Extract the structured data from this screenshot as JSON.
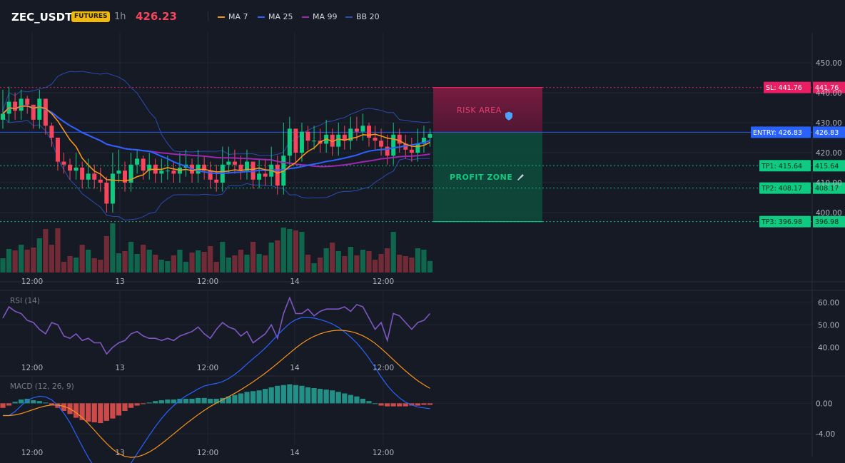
{
  "header": {
    "symbol": "ZEC_USDT",
    "badge": "FUTURES",
    "timeframe": "1h",
    "last_price": "426.23",
    "legend": [
      {
        "label": "MA 7",
        "color": "#f7931a"
      },
      {
        "label": "MA 25",
        "color": "#2962ff"
      },
      {
        "label": "MA 99",
        "color": "#9c27b0"
      },
      {
        "label": "BB 20",
        "color": "#2a4bb0"
      }
    ]
  },
  "colors": {
    "up": "#0ecb81",
    "down": "#f6465d",
    "grid": "#1f2533",
    "risk": "#e91e63",
    "profit": "#00c087",
    "entry": "#2962ff"
  },
  "chart_data": [
    {
      "type": "candlestick",
      "name": "price",
      "x_ticks": [
        "12:00",
        "13",
        "12:00",
        "14",
        "12:00"
      ],
      "y_ticks": [
        "450.00",
        "440.00",
        "430.00",
        "420.00",
        "410.00",
        "400.00"
      ],
      "ylim": [
        380,
        460
      ],
      "ohlc_approx": {
        "closes": [
          433,
          437,
          434,
          438,
          436,
          431,
          438,
          429,
          425,
          417,
          416,
          414,
          415,
          411,
          413,
          411,
          410,
          403,
          413,
          414,
          410,
          416,
          418,
          414,
          416,
          413,
          414,
          414,
          413,
          415,
          416,
          413,
          416,
          414,
          411,
          410,
          416,
          417,
          416,
          414,
          417,
          411,
          413,
          412,
          416,
          409,
          419,
          428,
          420,
          427,
          424,
          424,
          423,
          426,
          422,
          426,
          424,
          428,
          427,
          429,
          425,
          424,
          422,
          419,
          426,
          423,
          421,
          420,
          423,
          425,
          426.23
        ],
        "highs": [
          441,
          442,
          440,
          441,
          439,
          436,
          441,
          434,
          430,
          423,
          420,
          418,
          420,
          417,
          418,
          416,
          415,
          412,
          420,
          421,
          417,
          420,
          421,
          419,
          420,
          418,
          418,
          419,
          417,
          420,
          421,
          418,
          421,
          419,
          417,
          416,
          422,
          422,
          421,
          419,
          421,
          417,
          418,
          418,
          422,
          419,
          430,
          432,
          426,
          430,
          429,
          429,
          428,
          431,
          428,
          430,
          429,
          432,
          432,
          433,
          430,
          429,
          428,
          426,
          430,
          428,
          426,
          425,
          428,
          429,
          428
        ]
      },
      "levels": [
        {
          "label": "SL",
          "value": 441.76,
          "text": "SL: 441.76",
          "axis_text": "441.76"
        },
        {
          "label": "ENTRY",
          "value": 426.83,
          "text": "ENTRY: 426.83",
          "axis_text": "426.83"
        },
        {
          "label": "TP1",
          "value": 415.64,
          "text": "TP1: 415.64",
          "axis_text": "415.64"
        },
        {
          "label": "TP2",
          "value": 408.17,
          "text": "TP2: 408.17",
          "axis_text": "408.17"
        },
        {
          "label": "TP3",
          "value": 396.98,
          "text": "TP3: 396.98",
          "axis_text": "396.98"
        }
      ],
      "zones": [
        {
          "label": "RISK AREA",
          "icon": "shield-icon",
          "from": 426.83,
          "to": 441.76
        },
        {
          "label": "PROFIT ZONE",
          "icon": "rocket-icon",
          "from": 396.98,
          "to": 426.83
        }
      ]
    },
    {
      "type": "line",
      "name": "RSI (14)",
      "y_ticks": [
        "60.00",
        "50.00",
        "40.00"
      ],
      "ylim": [
        32,
        65
      ],
      "values": [
        53,
        58,
        56,
        55,
        52,
        51,
        48,
        46,
        51,
        50,
        45,
        44,
        46,
        43,
        44,
        42,
        42,
        37,
        40,
        42,
        43,
        46,
        47,
        45,
        44,
        44,
        43,
        44,
        43,
        45,
        46,
        47,
        49,
        46,
        44,
        48,
        51,
        49,
        48,
        45,
        47,
        42,
        44,
        46,
        50,
        44,
        55,
        62,
        55,
        55,
        57,
        54,
        56,
        57,
        57,
        57,
        58,
        56,
        59,
        58,
        53,
        48,
        51,
        43,
        55,
        54,
        51,
        48,
        51,
        52,
        55
      ]
    },
    {
      "type": "bar",
      "name": "MACD (12, 26, 9)",
      "y_ticks": [
        "0.00",
        "-4.00"
      ],
      "ylim": [
        -5.5,
        3.5
      ],
      "histogram": [
        -0.6,
        -0.3,
        0.2,
        0.5,
        0.6,
        0.4,
        0.3,
        0.1,
        -0.2,
        -0.6,
        -1.0,
        -1.4,
        -1.9,
        -2.2,
        -2.4,
        -2.5,
        -2.6,
        -2.3,
        -2.0,
        -1.6,
        -1.0,
        -0.6,
        -0.3,
        -0.1,
        0.1,
        0.3,
        0.4,
        0.5,
        0.5,
        0.6,
        0.6,
        0.6,
        0.7,
        0.7,
        0.6,
        0.6,
        0.7,
        0.9,
        1.1,
        1.3,
        1.5,
        1.6,
        1.7,
        1.9,
        2.1,
        2.3,
        2.4,
        2.5,
        2.4,
        2.3,
        2.1,
        2.0,
        1.9,
        1.8,
        1.7,
        1.5,
        1.3,
        1.1,
        0.9,
        0.6,
        0.3,
        0.0,
        -0.3,
        -0.4,
        -0.4,
        -0.4,
        -0.4,
        -0.3,
        -0.3,
        -0.2,
        -0.2
      ]
    }
  ]
}
